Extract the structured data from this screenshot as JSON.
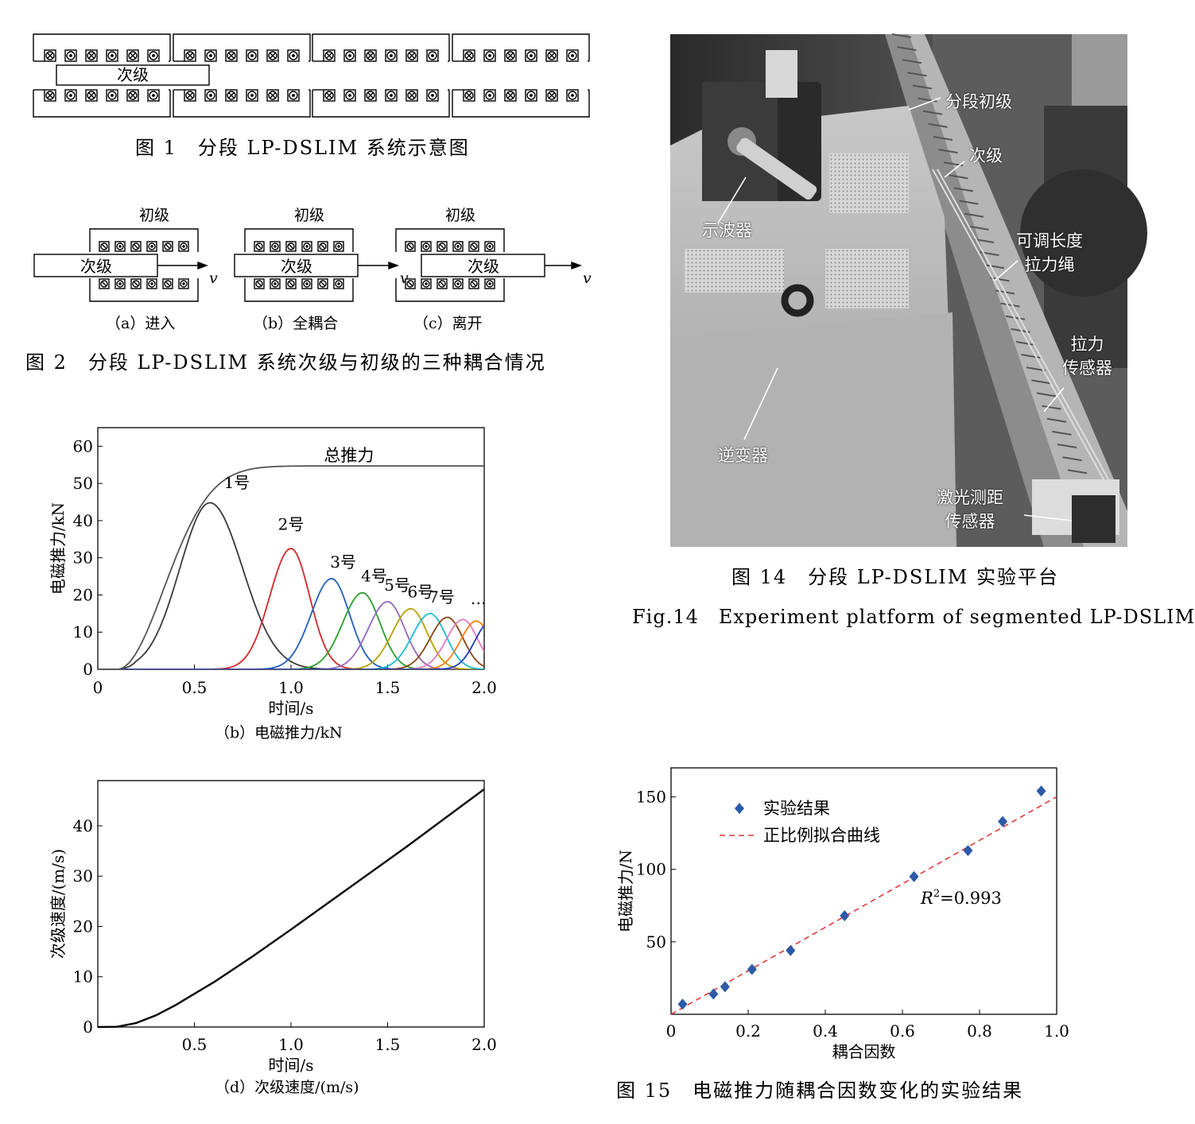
{
  "fig1": {
    "caption": "图 1　分段 LP-DSLIM 系统示意图",
    "secondary_label": "次级"
  },
  "fig2": {
    "caption": "图 2　分段 LP-DSLIM 系统次级与初级的三种耦合情况",
    "primary_label": "初级",
    "secondary_label": "次级",
    "velocity_label": "v",
    "subcaptions": [
      "（a）进入",
      "（b）全耦合",
      "（c）离开"
    ]
  },
  "fig14": {
    "caption_cn": "图 14　分段 LP-DSLIM 实验平台",
    "caption_en": "Fig.14　Experiment platform of segmented LP-DSLIM",
    "labels": {
      "segment_primary": "分段初级",
      "secondary": "次级",
      "oscilloscope": "示波器",
      "rope_1": "可调长度",
      "rope_2": "拉力绳",
      "force_sensor_1": "拉力",
      "force_sensor_2": "传感器",
      "inverter": "逆变器",
      "laser_1": "激光测距",
      "laser_2": "传感器"
    }
  },
  "fig_b": {
    "subcaption": "（b）电磁推力/kN",
    "chart_data": {
      "type": "line",
      "xlabel": "时间/s",
      "ylabel": "电磁推力/kN",
      "xlim": [
        0,
        2.0
      ],
      "ylim": [
        0,
        65
      ],
      "xticks": [
        "0",
        "0.5",
        "1.0",
        "1.5",
        "2.0"
      ],
      "yticks": [
        "0",
        "10",
        "20",
        "30",
        "40",
        "50",
        "60"
      ],
      "total": {
        "name": "总推力",
        "plateau": 54.7,
        "start": 0.1
      },
      "peaks": [
        {
          "name": "1号",
          "t": 0.58,
          "peak": 44.8,
          "color": "#3a3a3a"
        },
        {
          "name": "2号",
          "t": 1.0,
          "peak": 32.5,
          "color": "#d62728"
        },
        {
          "name": "3号",
          "t": 1.21,
          "peak": 24.4,
          "color": "#1f5fbf"
        },
        {
          "name": "4号",
          "t": 1.37,
          "peak": 20.6,
          "color": "#2ca02c"
        },
        {
          "name": "5号",
          "t": 1.5,
          "peak": 18.2,
          "color": "#9467bd"
        },
        {
          "name": "6号",
          "t": 1.62,
          "peak": 16.3,
          "color": "#b8a000"
        },
        {
          "name": "7号",
          "t": 1.72,
          "peak": 15.0,
          "color": "#17becf"
        },
        {
          "name": "",
          "t": 1.81,
          "peak": 14.0,
          "color": "#8b4513"
        },
        {
          "name": "",
          "t": 1.89,
          "peak": 13.4,
          "color": "#e377c2"
        },
        {
          "name": "",
          "t": 1.96,
          "peak": 13.0,
          "color": "#ff7f0e"
        },
        {
          "name": "",
          "t": 2.03,
          "peak": 12.7,
          "color": "#1f3fbf"
        }
      ],
      "ellipsis": "…"
    }
  },
  "fig_d": {
    "subcaption": "（d）次级速度/(m/s)",
    "chart_data": {
      "type": "line",
      "xlabel": "时间/s",
      "ylabel": "次级速度/(m/s)",
      "xlim": [
        0,
        2.0
      ],
      "ylim": [
        0,
        49
      ],
      "xticks": [
        "0.5",
        "1.0",
        "1.5",
        "2.0"
      ],
      "yticks": [
        "0",
        "10",
        "20",
        "30",
        "40"
      ],
      "x": [
        0,
        0.1,
        0.2,
        0.3,
        0.4,
        0.5,
        0.6,
        0.8,
        1.0,
        1.2,
        1.4,
        1.6,
        1.8,
        2.0
      ],
      "y": [
        0,
        0.05,
        0.8,
        2.3,
        4.3,
        6.6,
        8.9,
        14.0,
        19.4,
        24.9,
        30.4,
        35.9,
        41.6,
        47.3
      ]
    }
  },
  "fig15": {
    "caption": "图 15　电磁推力随耦合因数变化的实验结果",
    "chart_data": {
      "type": "scatter",
      "xlabel": "耦合因数",
      "ylabel": "电磁推力/N",
      "xlim": [
        0,
        1.0
      ],
      "ylim": [
        0,
        170
      ],
      "xticks": [
        "0",
        "0.2",
        "0.4",
        "0.6",
        "0.8",
        "1.0"
      ],
      "yticks": [
        "50",
        "100",
        "150"
      ],
      "series": [
        {
          "name": "实验结果",
          "x": [
            0.03,
            0.11,
            0.14,
            0.21,
            0.31,
            0.45,
            0.63,
            0.77,
            0.86,
            0.96
          ],
          "y": [
            7,
            14,
            19,
            31,
            44,
            68,
            95,
            113,
            133,
            154
          ]
        },
        {
          "name": "正比例拟合曲线",
          "x": [
            0,
            1.0
          ],
          "y": [
            0,
            150
          ]
        }
      ],
      "r2_prefix": "R",
      "r2_sup": "2",
      "r2_value": "=0.993"
    }
  }
}
